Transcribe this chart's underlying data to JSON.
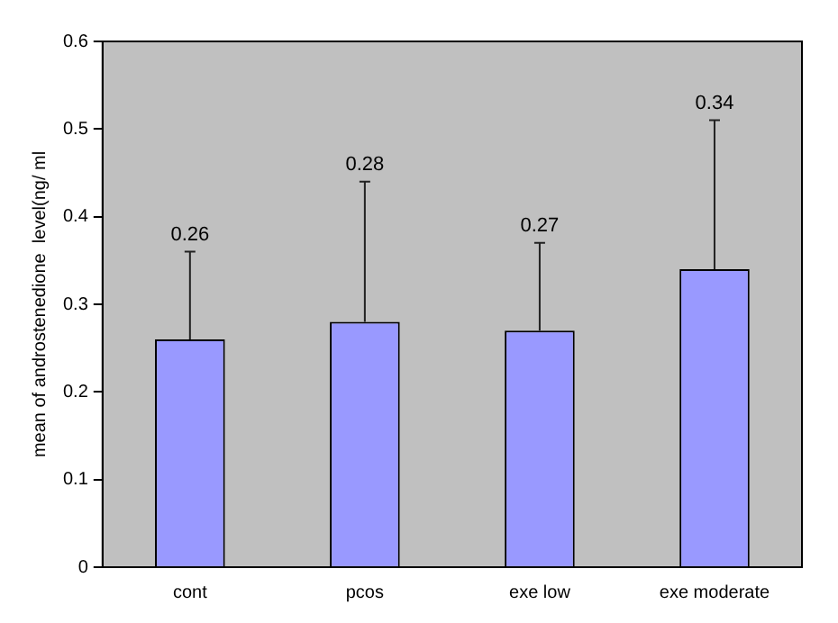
{
  "chart_data": {
    "type": "bar",
    "ylabel": "mean of androstenedione  level(ng/ ml",
    "categories": [
      "cont",
      "pcos",
      "exe low",
      "exe moderate"
    ],
    "values": [
      0.26,
      0.28,
      0.27,
      0.34
    ],
    "errors": [
      [
        0.26,
        0.36
      ],
      [
        0.28,
        0.44
      ],
      [
        0.27,
        0.37
      ],
      [
        0.34,
        0.51
      ]
    ],
    "color": "#9999ff",
    "annotations": [
      {
        "text": "0.26",
        "x": "cont",
        "y": 0.36
      },
      {
        "text": "0.28",
        "x": "pcos",
        "y": 0.44
      },
      {
        "text": "0.27",
        "x": "exe low",
        "y": 0.37
      },
      {
        "text": "0.34",
        "x": "exe moderate",
        "y": 0.51
      }
    ],
    "ylim": [
      0,
      0.6
    ],
    "yticks": [
      0,
      0.1,
      0.2,
      0.3,
      0.4,
      0.5,
      0.6
    ],
    "grid": false,
    "legend": false
  }
}
